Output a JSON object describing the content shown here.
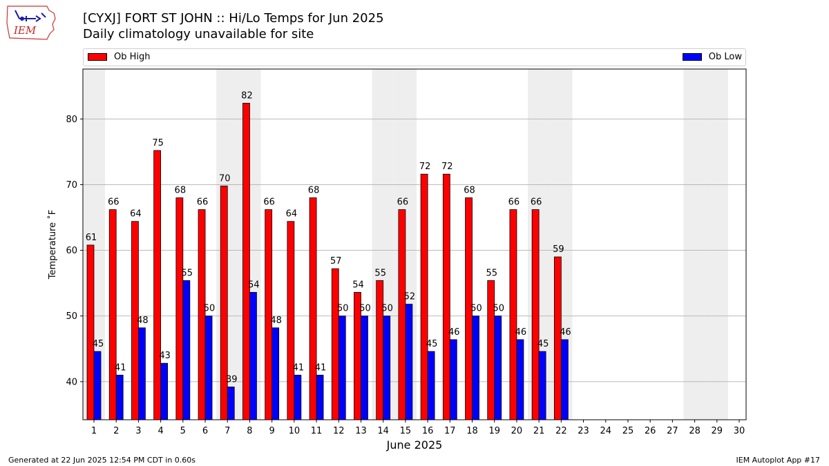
{
  "header": {
    "title": "[CYXJ] FORT ST JOHN :: Hi/Lo Temps for Jun 2025",
    "subtitle": "Daily climatology unavailable for site"
  },
  "logo": {
    "text": "IEM"
  },
  "footer": {
    "generated": "Generated at 22 Jun 2025 12:54 PM CDT in 0.60s",
    "app": "IEM Autoplot App #17"
  },
  "chart_data": {
    "type": "bar",
    "title": "[CYXJ] FORT ST JOHN :: Hi/Lo Temps for Jun 2025",
    "subtitle": "Daily climatology unavailable for site",
    "xlabel": "June 2025",
    "ylabel": "Temperature ˚F",
    "categories": [
      "1",
      "2",
      "3",
      "4",
      "5",
      "6",
      "7",
      "8",
      "9",
      "10",
      "11",
      "12",
      "13",
      "14",
      "15",
      "16",
      "17",
      "18",
      "19",
      "20",
      "21",
      "22",
      "23",
      "24",
      "25",
      "26",
      "27",
      "28",
      "29",
      "30"
    ],
    "series": [
      {
        "name": "Ob High",
        "color": "#ff0000",
        "values": [
          61,
          66,
          64,
          75,
          68,
          66,
          70,
          82,
          66,
          64,
          68,
          57,
          54,
          55,
          66,
          72,
          72,
          68,
          55,
          66,
          66,
          59,
          null,
          null,
          null,
          null,
          null,
          null,
          null,
          null
        ],
        "exact": [
          60.8,
          66.2,
          64.4,
          75.2,
          68.0,
          66.2,
          69.8,
          82.4,
          66.2,
          64.4,
          68.0,
          57.2,
          53.6,
          55.4,
          66.2,
          71.6,
          71.6,
          68.0,
          55.4,
          66.2,
          66.2,
          59.0,
          null,
          null,
          null,
          null,
          null,
          null,
          null,
          null
        ]
      },
      {
        "name": "Ob Low",
        "color": "#0000ff",
        "values": [
          45,
          41,
          48,
          43,
          55,
          50,
          39,
          54,
          48,
          41,
          41,
          50,
          50,
          50,
          52,
          45,
          46,
          50,
          50,
          46,
          45,
          46,
          null,
          null,
          null,
          null,
          null,
          null,
          null,
          null
        ],
        "exact": [
          44.6,
          41.0,
          48.2,
          42.8,
          55.4,
          50.0,
          39.2,
          53.6,
          48.2,
          41.0,
          41.0,
          50.0,
          50.0,
          50.0,
          51.8,
          44.6,
          46.4,
          50.0,
          50.0,
          46.4,
          44.6,
          46.4,
          null,
          null,
          null,
          null,
          null,
          null,
          null,
          null
        ]
      }
    ],
    "weekend_shaded_days": [
      1,
      7,
      8,
      14,
      15,
      21,
      22,
      28,
      29
    ],
    "ylim": [
      34.2,
      87.6
    ],
    "yticks": [
      40,
      50,
      60,
      70,
      80
    ],
    "grid": true,
    "legend": "top"
  }
}
